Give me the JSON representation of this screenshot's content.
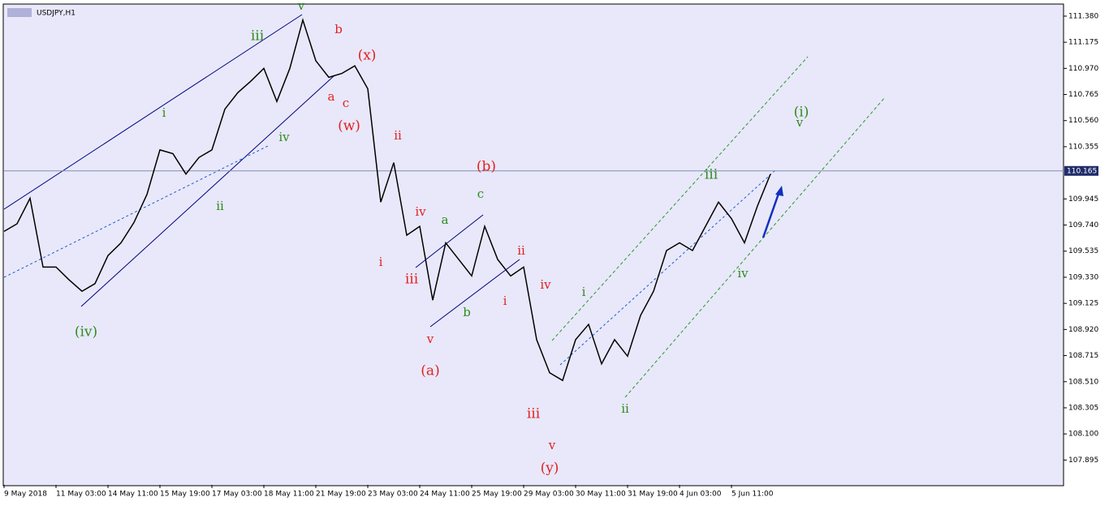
{
  "chart_data": {
    "type": "line",
    "title": "USDJPY,H1",
    "categories": [
      "9 May 2018",
      null,
      null,
      null,
      "11 May 03:00",
      null,
      null,
      null,
      "14 May 11:00",
      null,
      null,
      null,
      "15 May 19:00",
      null,
      null,
      null,
      "17 May 03:00",
      null,
      null,
      null,
      "18 May 11:00",
      null,
      null,
      null,
      "21 May 19:00",
      null,
      null,
      null,
      "23 May 03:00",
      null,
      null,
      null,
      "24 May 11:00",
      null,
      null,
      null,
      "25 May 19:00",
      null,
      null,
      null,
      "29 May 03:00",
      null,
      null,
      null,
      "30 May 11:00",
      null,
      null,
      null,
      "31 May 19:00",
      null,
      null,
      null,
      "4 Jun 03:00",
      null,
      null,
      null,
      "5 Jun 11:00",
      null,
      null,
      null
    ],
    "series": [
      {
        "name": "USDJPY",
        "color": "#000000",
        "values": [
          109.69,
          109.75,
          109.95,
          109.41,
          109.41,
          109.31,
          109.22,
          109.28,
          109.5,
          109.6,
          109.76,
          109.98,
          110.33,
          110.3,
          110.14,
          110.27,
          110.33,
          110.65,
          110.78,
          110.87,
          110.97,
          110.71,
          110.97,
          111.35,
          111.03,
          110.9,
          110.93,
          110.99,
          110.81,
          109.92,
          110.23,
          109.66,
          109.73,
          109.15,
          109.6,
          109.47,
          109.34,
          109.73,
          109.47,
          109.34,
          109.41,
          108.84,
          108.58,
          108.52,
          108.84,
          108.96,
          108.65,
          108.84,
          108.71,
          109.03,
          109.22,
          109.54,
          109.6,
          109.54,
          109.73,
          109.92,
          109.79,
          109.6,
          109.89,
          110.14
        ]
      }
    ],
    "ylim": [
      107.7,
      111.475
    ],
    "yticks": [
      {
        "value": 111.38,
        "label": "111.380"
      },
      {
        "value": 111.175,
        "label": "111.175"
      },
      {
        "value": 110.97,
        "label": "110.970"
      },
      {
        "value": 110.765,
        "label": "110.765"
      },
      {
        "value": 110.56,
        "label": "110.560"
      },
      {
        "value": 110.355,
        "label": "110.355"
      },
      {
        "value": 109.945,
        "label": "109.945"
      },
      {
        "value": 109.74,
        "label": "109.740"
      },
      {
        "value": 109.535,
        "label": "109.535"
      },
      {
        "value": 109.33,
        "label": "109.330"
      },
      {
        "value": 109.125,
        "label": "109.125"
      },
      {
        "value": 108.92,
        "label": "108.920"
      },
      {
        "value": 108.715,
        "label": "108.715"
      },
      {
        "value": 108.51,
        "label": "108.510"
      },
      {
        "value": 108.305,
        "label": "108.305"
      },
      {
        "value": 108.1,
        "label": "108.100"
      },
      {
        "value": 107.895,
        "label": "107.895"
      }
    ],
    "current_price": {
      "value": 110.165,
      "label": "110.165"
    },
    "annotations": [
      {
        "text": "v",
        "color": "#2e8b1f"
      },
      {
        "text": "iii",
        "color": "#2e8b1f"
      },
      {
        "text": "i",
        "color": "#2e8b1f"
      },
      {
        "text": "iv",
        "color": "#2e8b1f"
      },
      {
        "text": "ii",
        "color": "#2e8b1f"
      },
      {
        "text": "(iv)",
        "color": "#2e8b1f"
      },
      {
        "text": "c",
        "color": "#2e8b1f"
      },
      {
        "text": "a",
        "color": "#2e8b1f"
      },
      {
        "text": "b",
        "color": "#2e8b1f"
      },
      {
        "text": "i",
        "color": "#2e8b1f"
      },
      {
        "text": "ii",
        "color": "#2e8b1f"
      },
      {
        "text": "iii",
        "color": "#2e8b1f"
      },
      {
        "text": "iv",
        "color": "#2e8b1f"
      },
      {
        "text": "(i)",
        "color": "#2e8b1f"
      },
      {
        "text": "v",
        "color": "#2e8b1f"
      },
      {
        "text": "b",
        "color": "#e3201f"
      },
      {
        "text": "(x)",
        "color": "#e3201f"
      },
      {
        "text": "a",
        "color": "#e3201f"
      },
      {
        "text": "c",
        "color": "#e3201f"
      },
      {
        "text": "(w)",
        "color": "#e3201f"
      },
      {
        "text": "ii",
        "color": "#e3201f"
      },
      {
        "text": "(b)",
        "color": "#e3201f"
      },
      {
        "text": "iv",
        "color": "#e3201f"
      },
      {
        "text": "i",
        "color": "#e3201f"
      },
      {
        "text": "iii",
        "color": "#e3201f"
      },
      {
        "text": "v",
        "color": "#e3201f"
      },
      {
        "text": "(a)",
        "color": "#e3201f"
      },
      {
        "text": "ii",
        "color": "#e3201f"
      },
      {
        "text": "iv",
        "color": "#e3201f"
      },
      {
        "text": "i",
        "color": "#e3201f"
      },
      {
        "text": "iii",
        "color": "#e3201f"
      },
      {
        "text": "v",
        "color": "#e3201f"
      },
      {
        "text": "(y)",
        "color": "#e3201f"
      }
    ]
  }
}
